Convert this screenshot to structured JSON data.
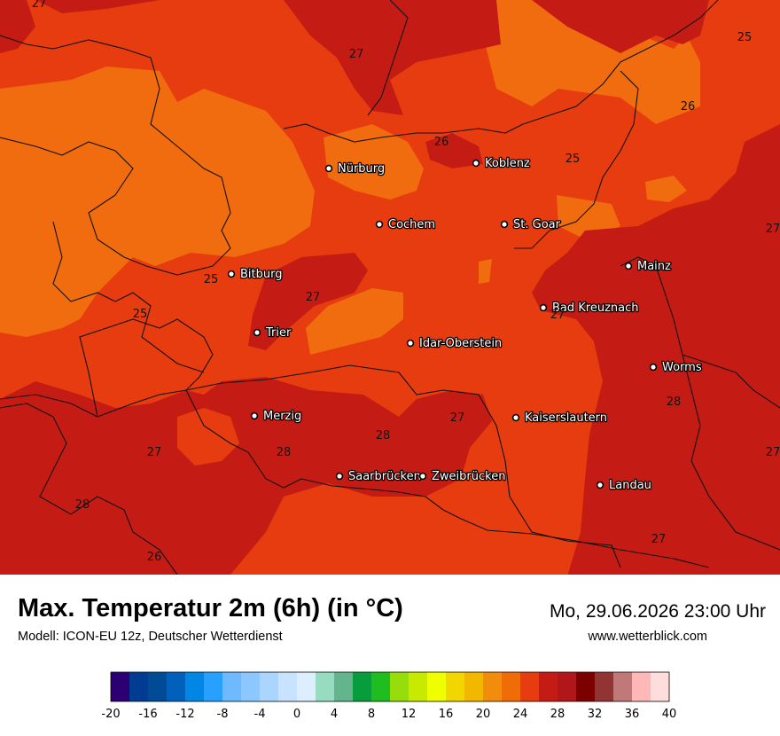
{
  "title": "Max. Temperatur 2m (6h) (in °C)",
  "model": "Modell: ICON-EU 12z, Deutscher Wetterdienst",
  "datetime": "Mo, 29.06.2026 23:00 Uhr",
  "website": "www.wetterblick.com",
  "cities": [
    {
      "name": "Nürburg"
    },
    {
      "name": "Koblenz"
    },
    {
      "name": "Cochem"
    },
    {
      "name": "St. Goar"
    },
    {
      "name": "Mainz"
    },
    {
      "name": "Bitburg"
    },
    {
      "name": "Bad Kreuznach"
    },
    {
      "name": "Trier"
    },
    {
      "name": "Idar-Oberstein"
    },
    {
      "name": "Worms"
    },
    {
      "name": "Merzig"
    },
    {
      "name": "Kaiserslautern"
    },
    {
      "name": "Saarbrücken"
    },
    {
      "name": "Zweibrücken"
    },
    {
      "name": "Landau"
    }
  ],
  "isotherm_labels": [
    "27",
    "27",
    "25",
    "26",
    "26",
    "25",
    "27",
    "27",
    "25",
    "27",
    "25",
    "28",
    "27",
    "28",
    "27",
    "28",
    "27",
    "28",
    "26",
    "27",
    "28",
    "27"
  ],
  "legend": {
    "colors": [
      "#2c0073",
      "#003c91",
      "#004b96",
      "#0060bb",
      "#0087e6",
      "#28a0ff",
      "#6eb9ff",
      "#8cc8ff",
      "#aad5ff",
      "#c8e3ff",
      "#ddeeff",
      "#97dcc0",
      "#64b58e",
      "#079c3c",
      "#1fbd1f",
      "#97dc0b",
      "#c8ea00",
      "#f0ff00",
      "#f2d600",
      "#f2b800",
      "#f28c0c",
      "#f06c06",
      "#e63c0f",
      "#c41c15",
      "#b1171a",
      "#7d0000",
      "#933434",
      "#c07878",
      "#ffb8b8",
      "#ffdddd"
    ],
    "ticks": [
      "-20",
      "-16",
      "-12",
      "-8",
      "-4",
      "0",
      "4",
      "8",
      "12",
      "16",
      "20",
      "24",
      "28",
      "32",
      "36",
      "40"
    ]
  },
  "field_colors": {
    "c24": "#f06c0e",
    "c25": "#e63c0f",
    "c26": "#c41c15"
  }
}
